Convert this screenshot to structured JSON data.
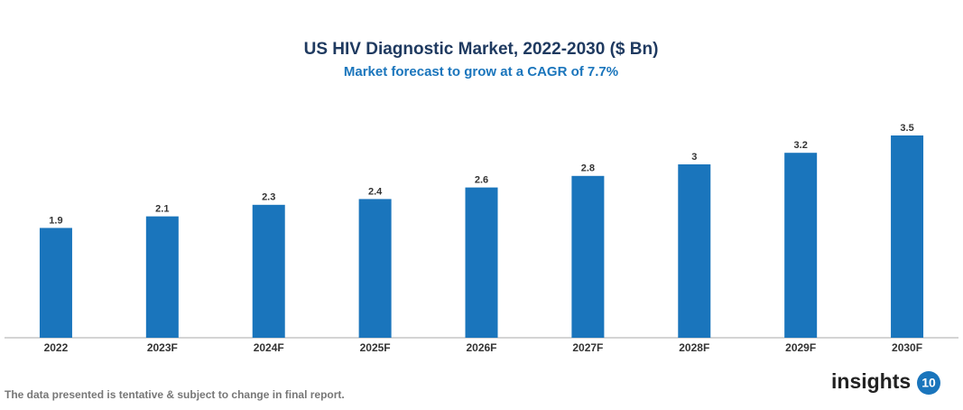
{
  "chart_data": {
    "type": "bar",
    "title": "US HIV Diagnostic Market, 2022-2030 ($ Bn)",
    "subtitle": "Market forecast to grow at a CAGR of 7.7%",
    "categories": [
      "2022",
      "2023F",
      "2024F",
      "2025F",
      "2026F",
      "2027F",
      "2028F",
      "2029F",
      "2030F"
    ],
    "values": [
      1.9,
      2.1,
      2.3,
      2.4,
      2.6,
      2.8,
      3,
      3.2,
      3.5
    ],
    "color": "#1a75bc",
    "ylim": [
      0,
      3.5
    ]
  },
  "footnote": "The data presented is tentative & subject to change in final report.",
  "logo": {
    "text": "insights",
    "badge": "10"
  }
}
